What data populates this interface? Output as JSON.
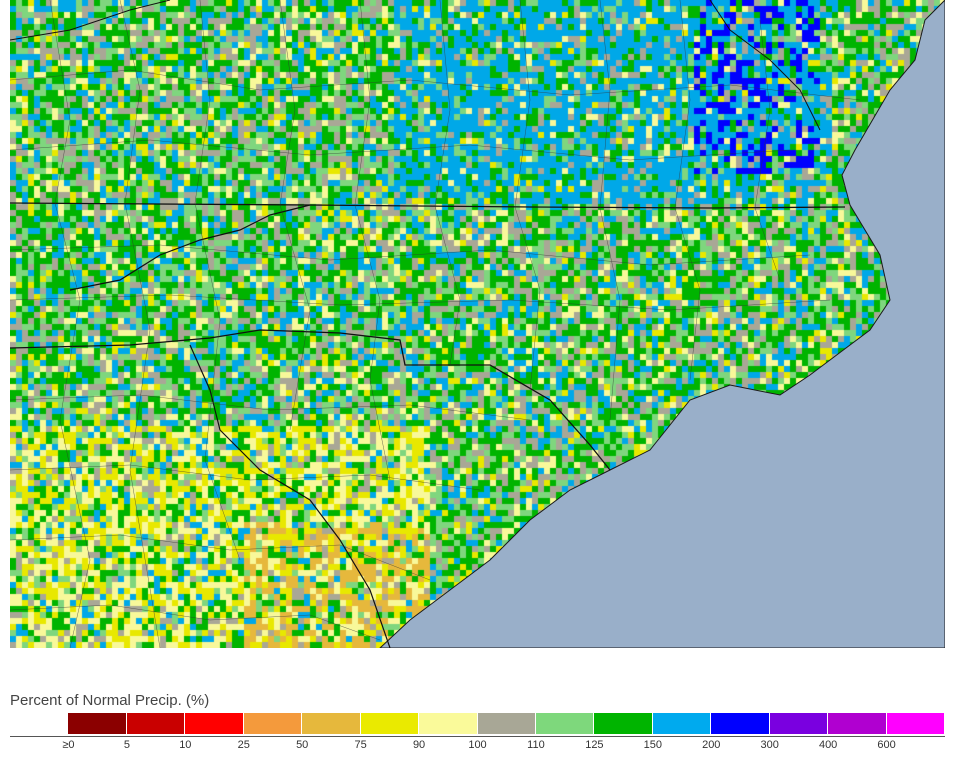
{
  "map": {
    "name": "percent-of-normal-precipitation-map",
    "land_colors_weighted": [
      {
        "color": "#a9a796",
        "weight": 14
      },
      {
        "color": "#7fd67e",
        "weight": 12
      },
      {
        "color": "#00b400",
        "weight": 22
      },
      {
        "color": "#00a8e8",
        "weight": 12
      },
      {
        "color": "#f8f89a",
        "weight": 7
      },
      {
        "color": "#e8e800",
        "weight": 4
      }
    ],
    "ocean_color": "#99afc9"
  },
  "legend": {
    "title": "Percent of Normal Precip. (%)",
    "bins": [
      {
        "color": "#ffffff"
      },
      {
        "color": "#8b0000"
      },
      {
        "color": "#c90000"
      },
      {
        "color": "#ff0000"
      },
      {
        "color": "#f49a3c"
      },
      {
        "color": "#e6b83c"
      },
      {
        "color": "#eaea00"
      },
      {
        "color": "#fafa9a"
      },
      {
        "color": "#a8a796"
      },
      {
        "color": "#7ed87c"
      },
      {
        "color": "#00b400"
      },
      {
        "color": "#00aaee"
      },
      {
        "color": "#0000ff"
      },
      {
        "color": "#7a00e0"
      },
      {
        "color": "#b000d0"
      },
      {
        "color": "#ff00ff"
      }
    ],
    "tick_labels": [
      "≥0",
      "5",
      "10",
      "25",
      "50",
      "75",
      "90",
      "100",
      "110",
      "125",
      "150",
      "200",
      "300",
      "400",
      "600"
    ]
  }
}
